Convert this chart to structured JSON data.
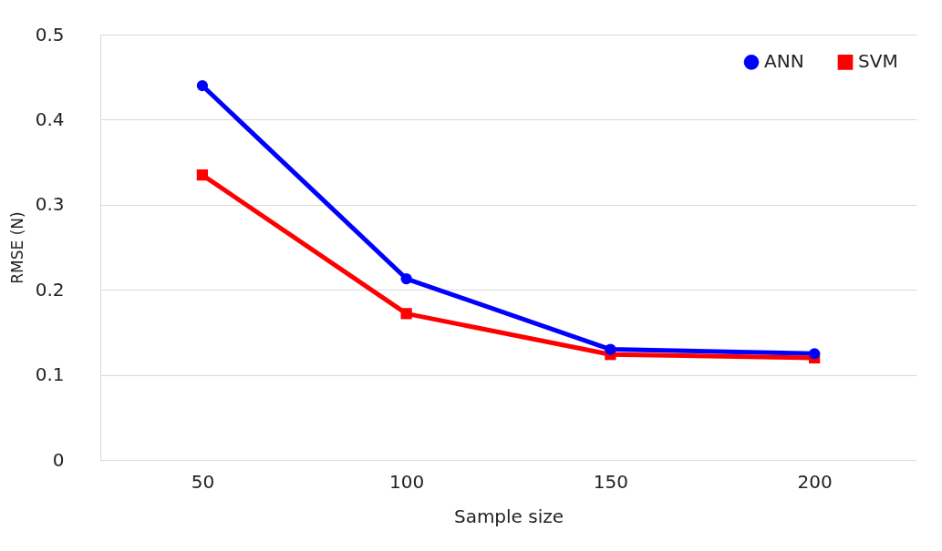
{
  "chart_data": {
    "type": "line",
    "xlabel": "Sample size",
    "ylabel": "RMSE (N)",
    "categories": [
      "50",
      "100",
      "150",
      "200"
    ],
    "series": [
      {
        "name": "ANN",
        "color": "#0000ff",
        "marker": "circle",
        "values": [
          0.44,
          0.213,
          0.13,
          0.125
        ]
      },
      {
        "name": "SVM",
        "color": "#ff0000",
        "marker": "square",
        "values": [
          0.335,
          0.172,
          0.124,
          0.12
        ]
      }
    ],
    "ylim": [
      0,
      0.5
    ],
    "yticks": [
      0,
      0.1,
      0.2,
      0.3,
      0.4,
      0.5
    ],
    "grid": "y",
    "legend": "top right",
    "line_style": "solid"
  }
}
